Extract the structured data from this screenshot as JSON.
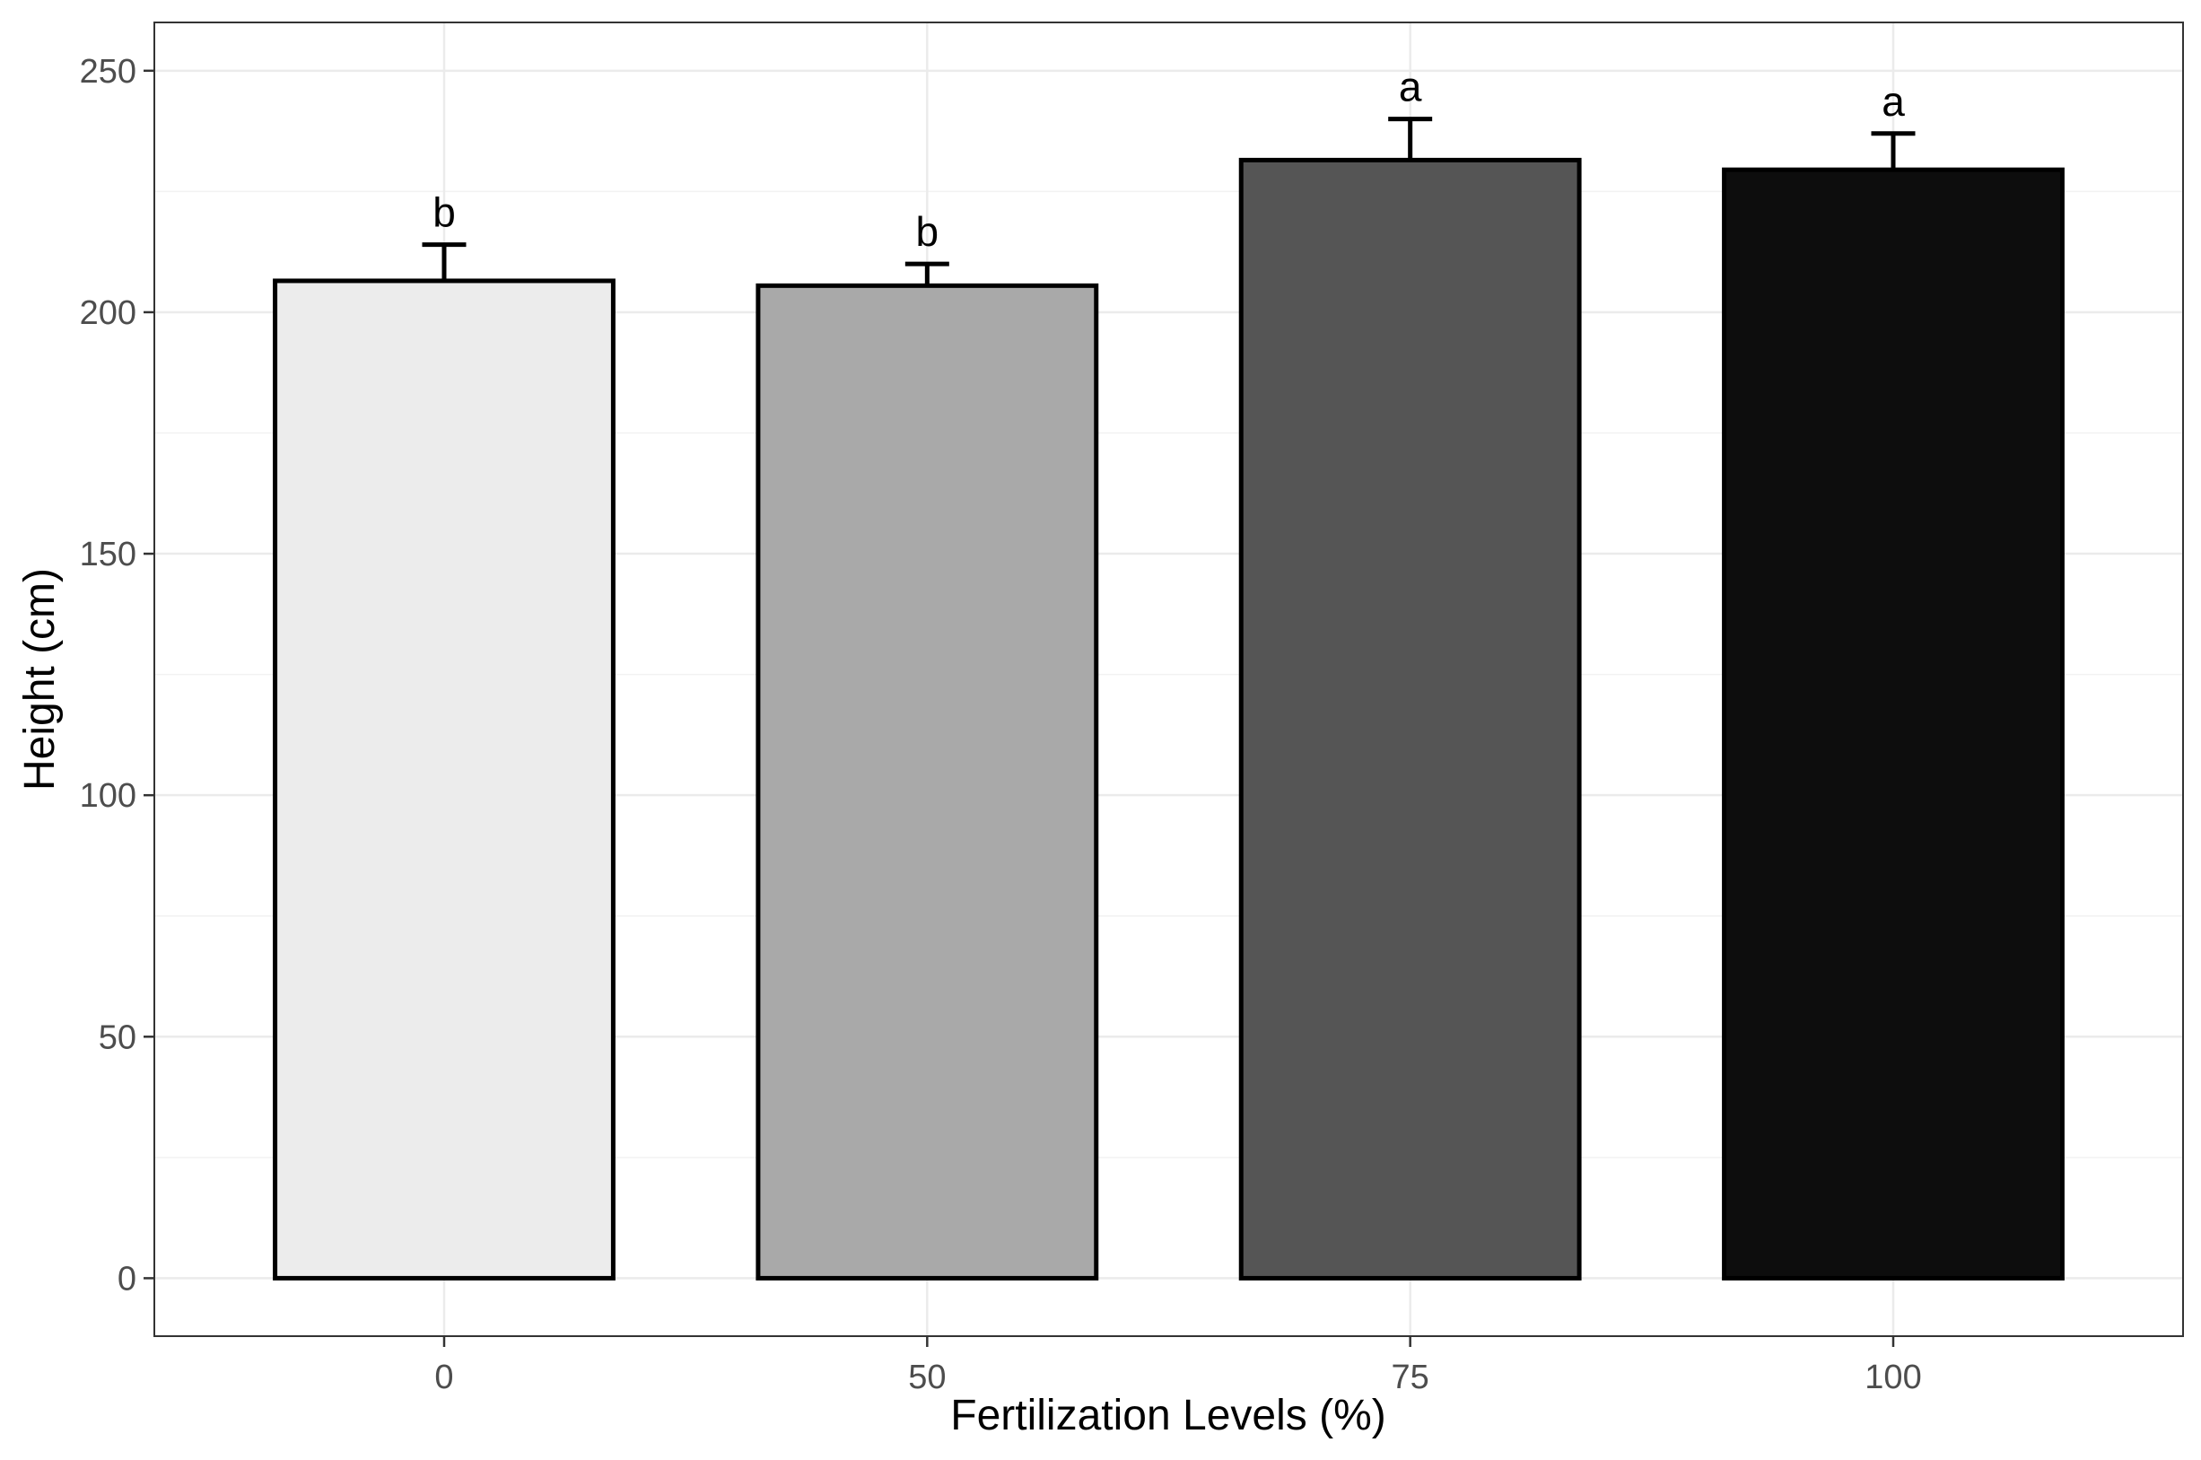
{
  "chart_data": {
    "type": "bar",
    "xlabel": "Fertilization Levels (%)",
    "ylabel": "Height (cm)",
    "categories": [
      "0",
      "50",
      "75",
      "100"
    ],
    "values": [
      206.5,
      205.5,
      231.5,
      229.5
    ],
    "error_upper": [
      214,
      210,
      240,
      237
    ],
    "significance_letters": [
      "b",
      "b",
      "a",
      "a"
    ],
    "bar_colors": [
      "#ececec",
      "#a9a9a9",
      "#555555",
      "#0d0d0d"
    ],
    "ylim": [
      -12,
      260
    ],
    "yticks": [
      0,
      50,
      100,
      150,
      200,
      250
    ],
    "ytick_labels": [
      "0",
      "50",
      "100",
      "150",
      "200",
      "250"
    ],
    "grid": true,
    "legend": "none"
  }
}
